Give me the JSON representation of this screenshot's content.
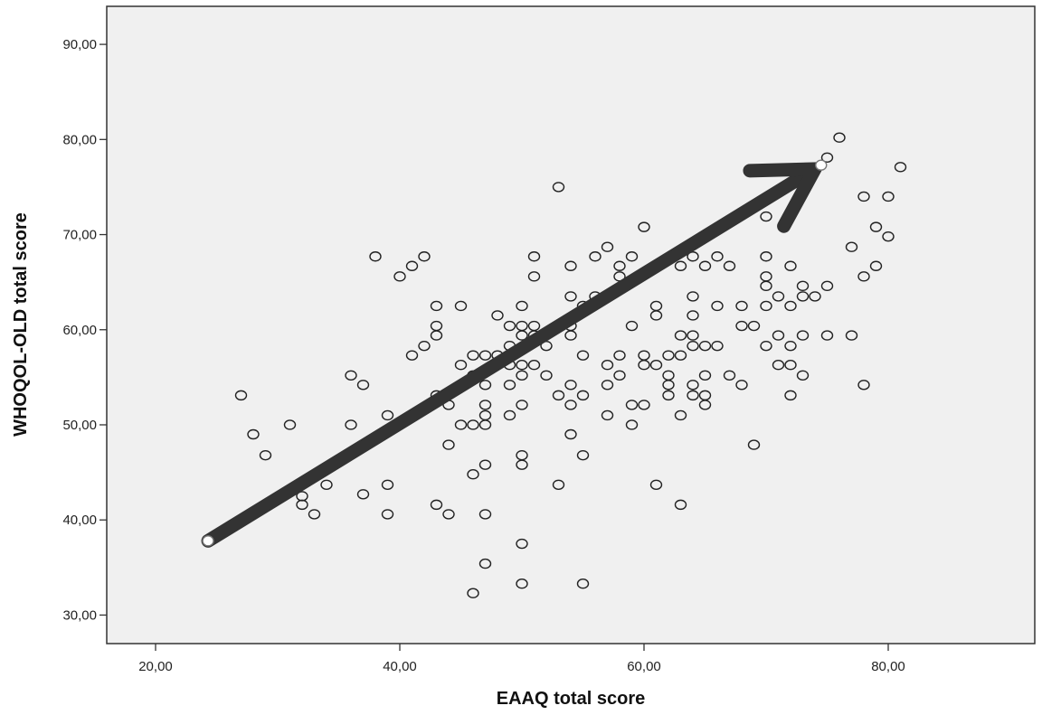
{
  "chart_data": {
    "type": "scatter",
    "title": "",
    "xlabel": "EAAQ total score",
    "ylabel": "WHOQOL-OLD total score",
    "xlim": [
      16,
      92
    ],
    "ylim": [
      27,
      94
    ],
    "x_ticks": [
      20,
      40,
      60,
      80
    ],
    "y_ticks": [
      30,
      40,
      50,
      60,
      70,
      80,
      90
    ],
    "x_tick_labels": [
      "20,00",
      "40,00",
      "60,00",
      "80,00"
    ],
    "y_tick_labels": [
      "30,00",
      "40,00",
      "50,00",
      "60,00",
      "70,00",
      "80,00",
      "90,00"
    ],
    "grid": false,
    "legend": "none",
    "colors": {
      "plot_background": "#f0f0f0",
      "marker": "#222222",
      "arrow": "#333333"
    },
    "arrow": {
      "from": [
        24.3,
        37.8
      ],
      "to": [
        74.5,
        77.3
      ]
    },
    "highlighted_points": [
      [
        24.3,
        37.8
      ],
      [
        74.5,
        77.3
      ]
    ],
    "points": [
      [
        27,
        53.1
      ],
      [
        28,
        49
      ],
      [
        29,
        46.8
      ],
      [
        31,
        50
      ],
      [
        32,
        42.5
      ],
      [
        32,
        41.6
      ],
      [
        33,
        40.6
      ],
      [
        34,
        43.7
      ],
      [
        36,
        55.2
      ],
      [
        36,
        50
      ],
      [
        37,
        54.2
      ],
      [
        37,
        42.7
      ],
      [
        38,
        67.7
      ],
      [
        39,
        51
      ],
      [
        39,
        43.7
      ],
      [
        39,
        40.6
      ],
      [
        40,
        65.6
      ],
      [
        41,
        66.7
      ],
      [
        41,
        57.3
      ],
      [
        42,
        67.7
      ],
      [
        42,
        58.3
      ],
      [
        43,
        62.5
      ],
      [
        43,
        60.4
      ],
      [
        43,
        59.4
      ],
      [
        43,
        53.1
      ],
      [
        43,
        41.6
      ],
      [
        44,
        52.1
      ],
      [
        44,
        47.9
      ],
      [
        44,
        40.6
      ],
      [
        45,
        62.5
      ],
      [
        45,
        56.3
      ],
      [
        45,
        50
      ],
      [
        46,
        57.3
      ],
      [
        46,
        55.2
      ],
      [
        46,
        50
      ],
      [
        46,
        44.8
      ],
      [
        46,
        32.3
      ],
      [
        47,
        57.3
      ],
      [
        47,
        54.2
      ],
      [
        47,
        52.1
      ],
      [
        47,
        51
      ],
      [
        47,
        50
      ],
      [
        47,
        45.8
      ],
      [
        47,
        40.6
      ],
      [
        47,
        35.4
      ],
      [
        48,
        61.5
      ],
      [
        48,
        57.3
      ],
      [
        49,
        60.4
      ],
      [
        49,
        58.3
      ],
      [
        49,
        57.3
      ],
      [
        49,
        56.3
      ],
      [
        49,
        54.2
      ],
      [
        49,
        51
      ],
      [
        50,
        62.5
      ],
      [
        50,
        60.4
      ],
      [
        50,
        59.4
      ],
      [
        50,
        56.3
      ],
      [
        50,
        55.2
      ],
      [
        50,
        52.1
      ],
      [
        50,
        46.8
      ],
      [
        50,
        45.8
      ],
      [
        50,
        37.5
      ],
      [
        50,
        33.3
      ],
      [
        51,
        67.7
      ],
      [
        51,
        65.6
      ],
      [
        51,
        60.4
      ],
      [
        51,
        59.4
      ],
      [
        51,
        56.3
      ],
      [
        52,
        58.3
      ],
      [
        52,
        55.2
      ],
      [
        53,
        75
      ],
      [
        53,
        53.1
      ],
      [
        53,
        43.7
      ],
      [
        54,
        66.7
      ],
      [
        54,
        63.5
      ],
      [
        54,
        60.4
      ],
      [
        54,
        59.4
      ],
      [
        54,
        54.2
      ],
      [
        54,
        52.1
      ],
      [
        54,
        49
      ],
      [
        55,
        62.5
      ],
      [
        55,
        57.3
      ],
      [
        55,
        53.1
      ],
      [
        55,
        46.8
      ],
      [
        55,
        33.3
      ],
      [
        56,
        67.7
      ],
      [
        56,
        63.5
      ],
      [
        57,
        68.7
      ],
      [
        57,
        56.3
      ],
      [
        57,
        54.2
      ],
      [
        57,
        51
      ],
      [
        58,
        66.7
      ],
      [
        58,
        65.6
      ],
      [
        58,
        57.3
      ],
      [
        58,
        55.2
      ],
      [
        59,
        67.7
      ],
      [
        59,
        60.4
      ],
      [
        59,
        52.1
      ],
      [
        59,
        50
      ],
      [
        60,
        70.8
      ],
      [
        60,
        57.3
      ],
      [
        60,
        56.3
      ],
      [
        60,
        52.1
      ],
      [
        61,
        62.5
      ],
      [
        61,
        61.5
      ],
      [
        61,
        56.3
      ],
      [
        61,
        43.7
      ],
      [
        62,
        57.3
      ],
      [
        62,
        55.2
      ],
      [
        62,
        54.2
      ],
      [
        62,
        53.1
      ],
      [
        63,
        66.7
      ],
      [
        63,
        59.4
      ],
      [
        63,
        57.3
      ],
      [
        63,
        51
      ],
      [
        63,
        41.6
      ],
      [
        64,
        67.7
      ],
      [
        64,
        63.5
      ],
      [
        64,
        61.5
      ],
      [
        64,
        59.4
      ],
      [
        64,
        58.3
      ],
      [
        64,
        54.2
      ],
      [
        64,
        53.1
      ],
      [
        65,
        66.7
      ],
      [
        65,
        58.3
      ],
      [
        65,
        55.2
      ],
      [
        65,
        53.1
      ],
      [
        65,
        52.1
      ],
      [
        66,
        67.7
      ],
      [
        66,
        62.5
      ],
      [
        66,
        58.3
      ],
      [
        67,
        66.7
      ],
      [
        67,
        55.2
      ],
      [
        68,
        62.5
      ],
      [
        68,
        60.4
      ],
      [
        68,
        54.2
      ],
      [
        69,
        60.4
      ],
      [
        69,
        47.9
      ],
      [
        70,
        71.9
      ],
      [
        70,
        67.7
      ],
      [
        70,
        65.6
      ],
      [
        70,
        64.6
      ],
      [
        70,
        62.5
      ],
      [
        70,
        58.3
      ],
      [
        71,
        63.5
      ],
      [
        71,
        59.4
      ],
      [
        71,
        56.3
      ],
      [
        72,
        66.7
      ],
      [
        72,
        62.5
      ],
      [
        72,
        58.3
      ],
      [
        72,
        56.3
      ],
      [
        72,
        53.1
      ],
      [
        73,
        64.6
      ],
      [
        73,
        63.5
      ],
      [
        73,
        59.4
      ],
      [
        73,
        55.2
      ],
      [
        74,
        63.5
      ],
      [
        75,
        78.1
      ],
      [
        75,
        64.6
      ],
      [
        75,
        59.4
      ],
      [
        76,
        80.2
      ],
      [
        77,
        68.7
      ],
      [
        77,
        59.4
      ],
      [
        78,
        74
      ],
      [
        78,
        65.6
      ],
      [
        78,
        54.2
      ],
      [
        79,
        70.8
      ],
      [
        79,
        66.7
      ],
      [
        80,
        74
      ],
      [
        80,
        69.8
      ],
      [
        81,
        77.1
      ]
    ]
  }
}
